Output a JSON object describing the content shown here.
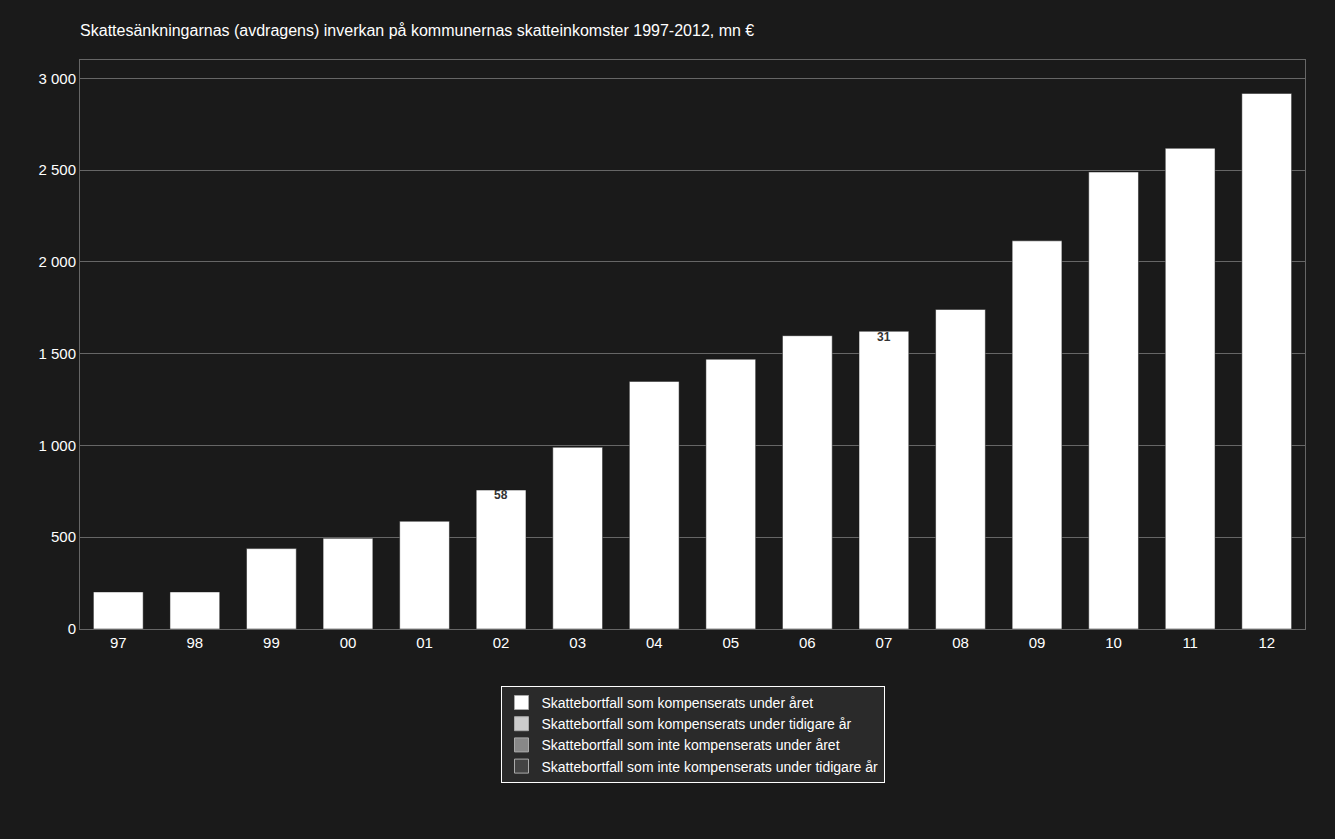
{
  "chart_data": {
    "type": "bar",
    "title": "Skattesänkningarnas (avdragens) inverkan på kommunernas skatteinkomster 1997-2012, mn €",
    "categories": [
      "97",
      "98",
      "99",
      "00",
      "01",
      "02",
      "03",
      "04",
      "05",
      "06",
      "07",
      "08",
      "09",
      "10",
      "11",
      "12"
    ],
    "values": [
      202,
      202,
      438,
      494,
      587,
      757,
      990,
      1349,
      1470,
      1598,
      1622,
      1741,
      2115,
      2490,
      2619,
      2918
    ],
    "color": "#ffffff",
    "ylim": [
      0,
      3100
    ],
    "yticks": [
      0,
      500,
      {
        "value": 1000,
        "label": "1 000"
      },
      {
        "value": 1500,
        "label": "1 500"
      },
      {
        "value": 2000,
        "label": "2 000"
      },
      {
        "value": 2500,
        "label": "2 500"
      },
      {
        "value": 3000,
        "label": "3 000"
      }
    ],
    "grid": true,
    "annotations": [
      {
        "text": "58",
        "x": "02",
        "y": 730
      },
      {
        "text": "31",
        "x": "07",
        "y": 1590
      }
    ],
    "legend": "bottom",
    "legend_entries": [
      {
        "name": "Skattebortfall som kompenserats under året",
        "color": "#ffffff"
      },
      {
        "name": "Skattebortfall som kompenserats under tidigare år",
        "color": "#cccccc"
      },
      {
        "name": "Skattebortfall som inte kompenserats under året",
        "color": "#888888"
      },
      {
        "name": "Skattebortfall som inte kompenserats under tidigare år",
        "color": "#444444"
      }
    ]
  }
}
